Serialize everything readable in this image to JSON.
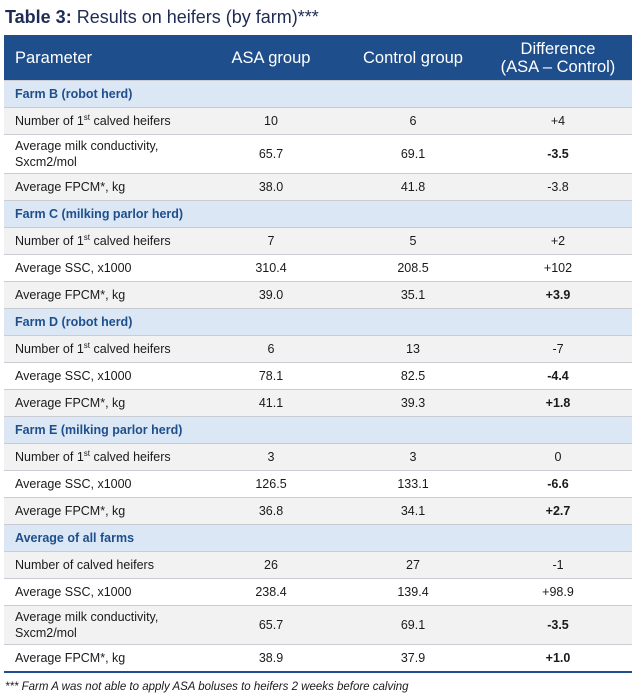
{
  "caption": {
    "prefix": "Table 3:",
    "text": " Results on heifers (by farm)***"
  },
  "header": {
    "parameter": "Parameter",
    "asa": "ASA group",
    "control": "Control group",
    "difference_line1": "Difference",
    "difference_line2": "(ASA – Control)"
  },
  "sections": [
    {
      "title": "Farm B (robot herd)",
      "rows": [
        {
          "name": "Number of 1",
          "sup": "st",
          "name_tail": " calved heifers",
          "asa": "10",
          "control": "6",
          "diff": "+4",
          "diff_bold": false
        },
        {
          "name": "Average milk conductivity, Sxcm2/mol",
          "asa": "65.7",
          "control": "69.1",
          "diff": "-3.5",
          "diff_bold": true
        },
        {
          "name": "Average FPCM*, kg",
          "asa": "38.0",
          "control": "41.8",
          "diff": "-3.8",
          "diff_bold": false
        }
      ]
    },
    {
      "title": "Farm C (milking parlor herd)",
      "rows": [
        {
          "name": "Number of 1",
          "sup": "st",
          "name_tail": " calved heifers",
          "asa": "7",
          "control": "5",
          "diff": "+2",
          "diff_bold": false
        },
        {
          "name": "Average SSC, x1000",
          "asa": "310.4",
          "control": "208.5",
          "diff": "+102",
          "diff_bold": false
        },
        {
          "name": "Average FPCM*, kg",
          "asa": "39.0",
          "control": "35.1",
          "diff": "+3.9",
          "diff_bold": true
        }
      ]
    },
    {
      "title": "Farm D (robot herd)",
      "rows": [
        {
          "name": "Number of 1",
          "sup": "st",
          "name_tail": " calved heifers",
          "asa": "6",
          "control": "13",
          "diff": "-7",
          "diff_bold": false
        },
        {
          "name": "Average SSC, x1000",
          "asa": "78.1",
          "control": "82.5",
          "diff": "-4.4",
          "diff_bold": true
        },
        {
          "name": "Average FPCM*, kg",
          "asa": "41.1",
          "control": "39.3",
          "diff": "+1.8",
          "diff_bold": true
        }
      ]
    },
    {
      "title": "Farm E (milking parlor herd)",
      "rows": [
        {
          "name": "Number of 1",
          "sup": "st",
          "name_tail": " calved heifers",
          "asa": "3",
          "control": "3",
          "diff": "0",
          "diff_bold": false
        },
        {
          "name": "Average SSC, x1000",
          "asa": "126.5",
          "control": "133.1",
          "diff": "-6.6",
          "diff_bold": true
        },
        {
          "name": "Average FPCM*, kg",
          "asa": "36.8",
          "control": "34.1",
          "diff": "+2.7",
          "diff_bold": true
        }
      ]
    },
    {
      "title": "Average of all farms",
      "rows": [
        {
          "name": "Number of calved heifers",
          "asa": "26",
          "control": "27",
          "diff": "-1",
          "diff_bold": false
        },
        {
          "name": "Average SSC, x1000",
          "asa": "238.4",
          "control": "139.4",
          "diff": "+98.9",
          "diff_bold": false
        },
        {
          "name": "Average milk conductivity, Sxcm2/mol",
          "asa": "65.7",
          "control": "69.1",
          "diff": "-3.5",
          "diff_bold": true
        },
        {
          "name": "Average FPCM*, kg",
          "asa": "38.9",
          "control": "37.9",
          "diff": "+1.0",
          "diff_bold": true
        }
      ]
    }
  ],
  "footnote": "*** Farm A was not able to apply ASA boluses to heifers 2 weeks before calving"
}
